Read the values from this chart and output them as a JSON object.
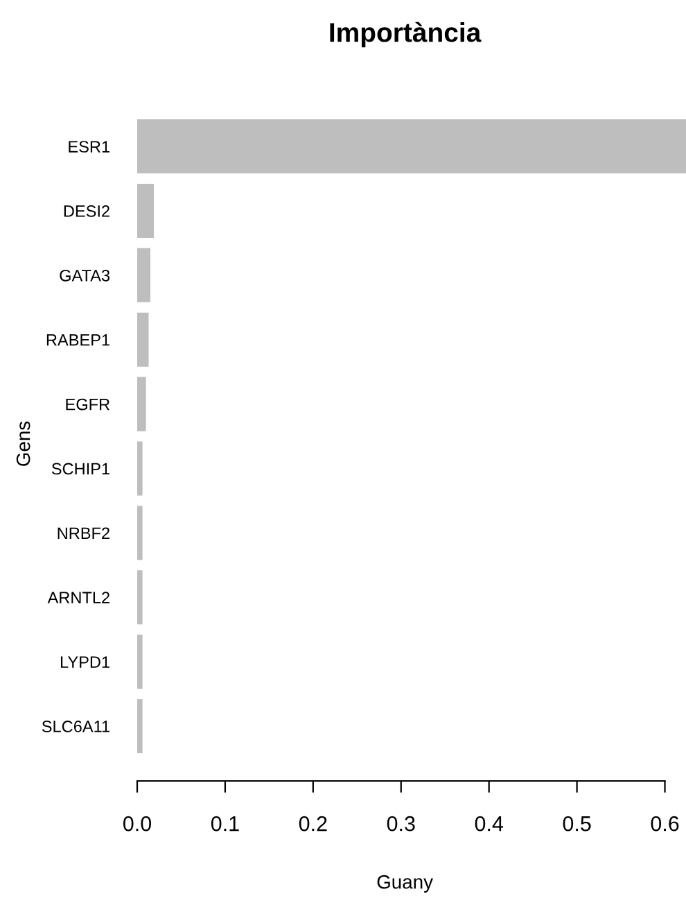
{
  "chart_data": {
    "type": "bar",
    "orientation": "horizontal",
    "title": "Importància",
    "xlabel": "Guany",
    "ylabel": "Gens",
    "categories": [
      "ESR1",
      "DESI2",
      "GATA3",
      "RABEP1",
      "EGFR",
      "SCHIP1",
      "NRBF2",
      "ARNTL2",
      "LYPD1",
      "SLC6A11"
    ],
    "values": [
      0.624,
      0.019,
      0.015,
      0.013,
      0.01,
      0.006,
      0.006,
      0.006,
      0.006,
      0.006
    ],
    "color": "#bebebe",
    "xlim": [
      0,
      0.624
    ],
    "xticks": [
      {
        "value": 0,
        "label": "0.0"
      },
      0.1,
      0.2,
      0.3,
      0.4,
      0.5,
      0.6
    ],
    "grid": false,
    "legend": false
  }
}
